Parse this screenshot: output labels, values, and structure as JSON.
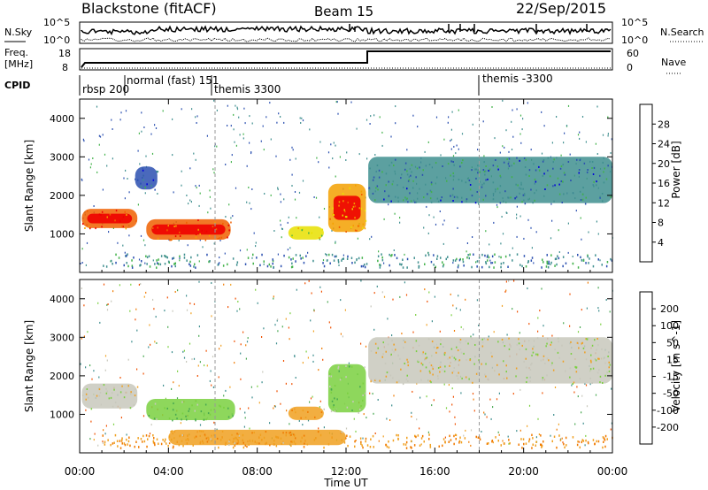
{
  "header": {
    "station": "Blackstone (fitACF)",
    "beam": "Beam 15",
    "date": "22/Sep/2015"
  },
  "nsky_panel": {
    "left_label": "N.Sky",
    "right_label": "N.Search",
    "left_ticks": [
      "10^5",
      "10^0"
    ],
    "right_ticks": [
      "10^5",
      "10^0"
    ]
  },
  "freq_panel": {
    "left_label_1": "Freq.",
    "left_label_2": "[MHz]",
    "left_ticks": [
      "18",
      "8"
    ],
    "right_label": "Nave",
    "right_ticks": [
      "60",
      "0"
    ]
  },
  "cpid_panel": {
    "label": "CPID",
    "modes": [
      "rbsp 200",
      "normal (fast) 151",
      "themis 3300",
      "themis -3300"
    ]
  },
  "chart_data": [
    {
      "type": "heatmap",
      "name": "power",
      "xlabel": "",
      "ylabel": "Slant Range [km]",
      "xlim": [
        "00:00",
        "24:00"
      ],
      "ylim": [
        0,
        4500
      ],
      "yticks": [
        1000,
        2000,
        3000,
        4000
      ],
      "colorbar": {
        "label": "Power [dB]",
        "ticks": [
          4,
          8,
          12,
          16,
          20,
          24,
          28
        ],
        "colors": [
          "#0000dd",
          "#2a4fb0",
          "#3f8f8f",
          "#42b24a",
          "#e8e000",
          "#f3a000",
          "#f06000",
          "#ee0000"
        ]
      },
      "regions": [
        {
          "t0": 0.1,
          "t1": 2.6,
          "r0": 1150,
          "r1": 1650,
          "level": 26
        },
        {
          "t0": 2.5,
          "t1": 3.5,
          "r0": 2150,
          "r1": 2750,
          "level": 7
        },
        {
          "t0": 3.0,
          "t1": 6.8,
          "r0": 850,
          "r1": 1380,
          "level": 26
        },
        {
          "t0": 9.4,
          "t1": 11.0,
          "r0": 850,
          "r1": 1200,
          "level": 18
        },
        {
          "t0": 11.2,
          "t1": 12.9,
          "r0": 1050,
          "r1": 2300,
          "level": 22
        },
        {
          "t0": 13.0,
          "t1": 24.0,
          "r0": 1800,
          "r1": 3000,
          "level": 9
        }
      ]
    },
    {
      "type": "heatmap",
      "name": "velocity",
      "xlabel": "Time UT",
      "ylabel": "Slant Range [km]",
      "xticks": [
        "00:00",
        "04:00",
        "08:00",
        "12:00",
        "16:00",
        "20:00",
        "00:00"
      ],
      "ylim": [
        0,
        4500
      ],
      "yticks": [
        1000,
        2000,
        3000,
        4000
      ],
      "colorbar": {
        "label": "Velocity [m s^-1]",
        "ticks": [
          200,
          100,
          50,
          15,
          -15,
          -50,
          -100,
          -200
        ],
        "colors": [
          "#2a55c8",
          "#3a8c8c",
          "#48a850",
          "#7ad040",
          "#c8c8bc",
          "#f0a020",
          "#f07a00",
          "#f05000",
          "#ee0000"
        ]
      },
      "regions": [
        {
          "t0": 0.1,
          "t1": 2.6,
          "r0": 1150,
          "r1": 1800,
          "level": 0
        },
        {
          "t0": 3.0,
          "t1": 7.0,
          "r0": 850,
          "r1": 1400,
          "level": 40
        },
        {
          "t0": 9.4,
          "t1": 11.0,
          "r0": 850,
          "r1": 1200,
          "level": -40
        },
        {
          "t0": 11.2,
          "t1": 12.9,
          "r0": 1050,
          "r1": 2300,
          "level": 30
        },
        {
          "t0": 13.0,
          "t1": 24.0,
          "r0": 1800,
          "r1": 3000,
          "level": 0
        },
        {
          "t0": 4.0,
          "t1": 12.0,
          "r0": 200,
          "r1": 600,
          "level": -40
        }
      ]
    }
  ]
}
